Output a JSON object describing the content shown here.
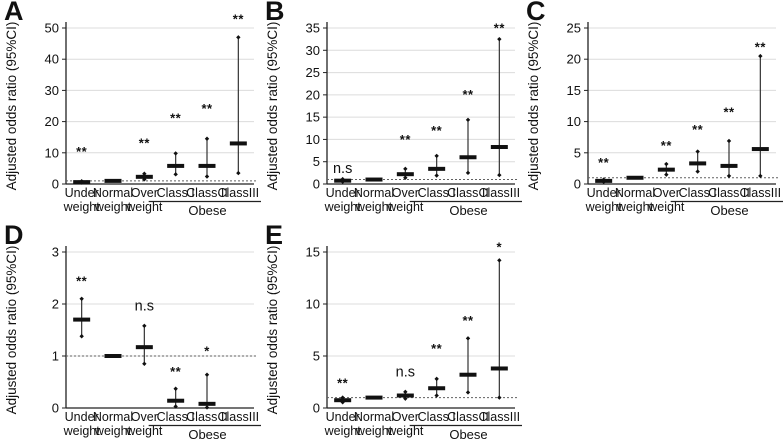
{
  "figure": {
    "y_axis_title": "Adjusted odds ratio (95%CI)",
    "group_label": "Obese",
    "category_lines": [
      [
        "Under",
        "weight"
      ],
      [
        "Normal",
        "weight"
      ],
      [
        "Over",
        "weight"
      ],
      [
        "Class I"
      ],
      [
        "Class II"
      ],
      [
        "ClassIII"
      ]
    ],
    "colors": {
      "marker": "#111111",
      "whisker": "#333333",
      "grid": "#dcdcdc",
      "axis": "#222222",
      "ref_line": "#606060",
      "text": "#111111"
    }
  },
  "chart_data": [
    {
      "panel": "A",
      "type": "errorbar",
      "ylabel": "Adjusted odds ratio (95%CI)",
      "ylim": [
        0,
        50
      ],
      "yticks": [
        0,
        10,
        20,
        30,
        40,
        50
      ],
      "ref_line": 1,
      "grid": true,
      "legend": "none",
      "categories": [
        "Under weight",
        "Normal weight",
        "Over weight",
        "Class I (Obese)",
        "Class II (Obese)",
        "ClassIII (Obese)"
      ],
      "points": [
        {
          "or": 0.6,
          "ci": [
            0.45,
            0.9
          ],
          "sig": "**",
          "sig_y": 10
        },
        {
          "or": 1.0,
          "ci": [
            1.0,
            1.0
          ],
          "sig": null,
          "sig_y": null
        },
        {
          "or": 2.3,
          "ci": [
            1.5,
            3.3
          ],
          "sig": "**",
          "sig_y": 12.8
        },
        {
          "or": 5.8,
          "ci": [
            3.1,
            9.8
          ],
          "sig": "**",
          "sig_y": 20.8
        },
        {
          "or": 5.8,
          "ci": [
            2.4,
            14.5
          ],
          "sig": "**",
          "sig_y": 23.8
        },
        {
          "or": 13.0,
          "ci": [
            3.5,
            47.0
          ],
          "sig": "**",
          "sig_y": 52.5
        }
      ]
    },
    {
      "panel": "B",
      "type": "errorbar",
      "ylabel": "Adjusted odds ratio (95%CI)",
      "ylim": [
        0,
        35
      ],
      "yticks": [
        0,
        5,
        10,
        15,
        20,
        25,
        30,
        35
      ],
      "ref_line": 1,
      "grid": true,
      "legend": "none",
      "categories": [
        "Under weight",
        "Normal weight",
        "Over weight",
        "Class I (Obese)",
        "Class II (Obese)",
        "ClassIII (Obese)"
      ],
      "points": [
        {
          "or": 0.75,
          "ci": [
            0.5,
            1.1
          ],
          "sig": "n.s",
          "sig_y": 3.3
        },
        {
          "or": 1.0,
          "ci": [
            1.0,
            1.0
          ],
          "sig": null,
          "sig_y": null
        },
        {
          "or": 2.2,
          "ci": [
            1.4,
            3.4
          ],
          "sig": "**",
          "sig_y": 9.8
        },
        {
          "or": 3.4,
          "ci": [
            1.9,
            6.3
          ],
          "sig": "**",
          "sig_y": 11.8
        },
        {
          "or": 6.0,
          "ci": [
            2.5,
            14.4
          ],
          "sig": "**",
          "sig_y": 19.8
        },
        {
          "or": 8.3,
          "ci": [
            2.0,
            32.5
          ],
          "sig": "**",
          "sig_y": 34.8
        }
      ]
    },
    {
      "panel": "C",
      "type": "errorbar",
      "ylabel": "Adjusted odds ratio (95%CI)",
      "ylim": [
        0,
        25
      ],
      "yticks": [
        0,
        5,
        10,
        15,
        20,
        25
      ],
      "ref_line": 1,
      "grid": true,
      "legend": "none",
      "categories": [
        "Under weight",
        "Normal weight",
        "Over weight",
        "Class I (Obese)",
        "Class II (Obese)",
        "ClassIII (Obese)"
      ],
      "points": [
        {
          "or": 0.5,
          "ci": [
            0.35,
            0.7
          ],
          "sig": "**",
          "sig_y": 3.3
        },
        {
          "or": 1.0,
          "ci": [
            1.0,
            1.0
          ],
          "sig": null,
          "sig_y": null
        },
        {
          "or": 2.3,
          "ci": [
            1.5,
            3.2
          ],
          "sig": "**",
          "sig_y": 6.0
        },
        {
          "or": 3.3,
          "ci": [
            2.0,
            5.2
          ],
          "sig": "**",
          "sig_y": 8.6
        },
        {
          "or": 2.9,
          "ci": [
            1.3,
            6.9
          ],
          "sig": "**",
          "sig_y": 11.4
        },
        {
          "or": 5.6,
          "ci": [
            1.3,
            20.5
          ],
          "sig": "**",
          "sig_y": 21.8
        }
      ]
    },
    {
      "panel": "D",
      "type": "errorbar",
      "ylabel": "Adjusted odds ratio (95%CI)",
      "ylim": [
        0,
        3
      ],
      "yticks": [
        0,
        1,
        2,
        3
      ],
      "ref_line": 1,
      "grid": true,
      "legend": "none",
      "categories": [
        "Under weight",
        "Normal weight",
        "Over weight",
        "Class I (Obese)",
        "Class II (Obese)",
        "ClassIII (Obese)"
      ],
      "points": [
        {
          "or": 1.7,
          "ci": [
            1.38,
            2.1
          ],
          "sig": "**",
          "sig_y": 2.42
        },
        {
          "or": 1.0,
          "ci": [
            1.0,
            1.0
          ],
          "sig": null,
          "sig_y": null
        },
        {
          "or": 1.17,
          "ci": [
            0.85,
            1.58
          ],
          "sig": "n.s",
          "sig_y": 1.95
        },
        {
          "or": 0.14,
          "ci": [
            0.03,
            0.37
          ],
          "sig": "**",
          "sig_y": 0.68
        },
        {
          "or": 0.08,
          "ci": [
            0.01,
            0.64
          ],
          "sig": "*",
          "sig_y": 1.08
        },
        null
      ]
    },
    {
      "panel": "E",
      "type": "errorbar",
      "ylabel": "Adjusted odds ratio (95%CI)",
      "ylim": [
        0,
        15
      ],
      "yticks": [
        0,
        5,
        10,
        15
      ],
      "ref_line": 1,
      "grid": true,
      "legend": "none",
      "categories": [
        "Under weight",
        "Normal weight",
        "Over weight",
        "Class I (Obese)",
        "Class II (Obese)",
        "ClassIII (Obese)"
      ],
      "points": [
        {
          "or": 0.75,
          "ci": [
            0.55,
            1.0
          ],
          "sig": "**",
          "sig_y": 2.3
        },
        {
          "or": 1.0,
          "ci": [
            1.0,
            1.0
          ],
          "sig": null,
          "sig_y": null
        },
        {
          "or": 1.2,
          "ci": [
            0.9,
            1.55
          ],
          "sig": "n.s",
          "sig_y": 3.4
        },
        {
          "or": 1.9,
          "ci": [
            1.2,
            2.8
          ],
          "sig": "**",
          "sig_y": 5.6
        },
        {
          "or": 3.2,
          "ci": [
            1.5,
            6.7
          ],
          "sig": "**",
          "sig_y": 8.3
        },
        {
          "or": 3.8,
          "ci": [
            1.0,
            14.2
          ],
          "sig": "*",
          "sig_y": 15.4
        }
      ]
    }
  ]
}
